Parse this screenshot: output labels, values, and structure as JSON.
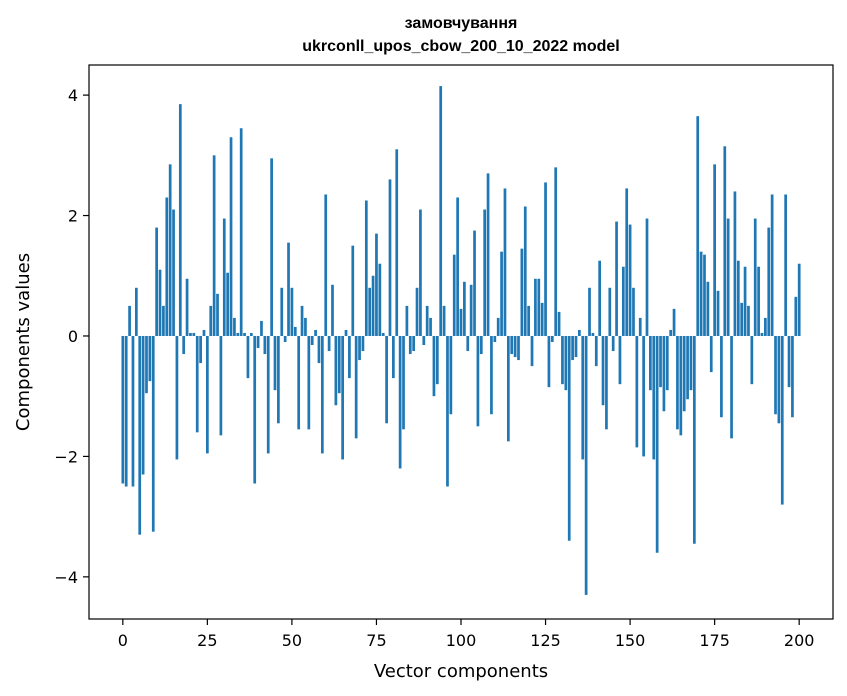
{
  "chart_data": {
    "type": "bar",
    "title_line1": "замовчування",
    "title_line2": "ukrconll_upos_cbow_200_10_2022 model",
    "xlabel": "Vector components",
    "ylabel": "Components values",
    "xlim": [
      -10,
      210
    ],
    "ylim": [
      -4.7,
      4.5
    ],
    "xticks": [
      0,
      25,
      50,
      75,
      100,
      125,
      150,
      175,
      200
    ],
    "yticks": [
      4,
      2,
      0,
      -2,
      -4
    ],
    "ytick_labels": [
      "4",
      "2",
      "0",
      "−2",
      "−4"
    ],
    "bar_color": "#1f77b4",
    "grid": false,
    "values": [
      -2.45,
      -2.5,
      0.5,
      -2.5,
      0.8,
      -3.3,
      -2.3,
      -0.95,
      -0.75,
      -3.25,
      1.8,
      1.1,
      0.5,
      2.3,
      2.85,
      2.1,
      -2.05,
      3.85,
      -0.3,
      0.95,
      0.05,
      0.05,
      -1.6,
      -0.45,
      0.1,
      -1.95,
      0.5,
      3.0,
      0.7,
      -1.65,
      1.95,
      1.05,
      3.3,
      0.3,
      0.05,
      3.45,
      0.05,
      -0.7,
      0.05,
      -2.45,
      -0.2,
      0.25,
      -0.3,
      -1.95,
      2.95,
      -0.9,
      -1.45,
      0.8,
      -0.1,
      1.55,
      0.8,
      0.15,
      -1.55,
      0.5,
      0.3,
      -1.55,
      -0.15,
      0.1,
      -0.45,
      -1.95,
      2.35,
      -0.25,
      0.85,
      -1.15,
      -0.95,
      -2.05,
      0.1,
      -0.7,
      1.5,
      -1.7,
      -0.4,
      -0.25,
      2.25,
      0.8,
      1.0,
      1.7,
      1.2,
      0.05,
      -1.45,
      2.6,
      -0.7,
      3.1,
      -2.2,
      -1.55,
      0.5,
      -0.3,
      -0.25,
      0.8,
      2.1,
      -0.15,
      0.5,
      0.3,
      -1.0,
      -0.8,
      4.15,
      0.5,
      -2.5,
      -1.3,
      1.35,
      2.3,
      0.45,
      0.9,
      -0.25,
      0.85,
      1.75,
      -1.5,
      -0.3,
      2.1,
      2.7,
      -1.3,
      -0.1,
      0.3,
      1.4,
      2.45,
      -1.75,
      -0.3,
      -0.35,
      -0.4,
      1.45,
      2.15,
      0.5,
      -0.5,
      0.95,
      0.95,
      0.55,
      2.55,
      -0.85,
      -0.1,
      2.8,
      0.4,
      -0.8,
      -0.9,
      -3.4,
      -0.4,
      -0.35,
      0.1,
      -2.05,
      -4.3,
      0.8,
      0.05,
      -0.5,
      1.25,
      -1.15,
      -1.55,
      0.8,
      -0.25,
      1.9,
      -0.8,
      1.15,
      2.45,
      1.85,
      0.8,
      -1.85,
      0.3,
      -2.0,
      1.95,
      -0.9,
      -2.05,
      -3.6,
      -0.85,
      -1.25,
      -0.9,
      0.1,
      0.45,
      -1.55,
      -1.65,
      -1.25,
      -1.05,
      -0.9,
      -3.45,
      3.65,
      1.4,
      1.35,
      0.9,
      -0.6,
      2.85,
      0.75,
      -1.35,
      3.15,
      1.95,
      -1.7,
      2.4,
      1.25,
      0.55,
      1.15,
      0.5,
      -0.8,
      1.95,
      1.15,
      0.05,
      0.3,
      1.8,
      2.35,
      -1.3,
      -1.45,
      -2.8,
      2.35,
      -0.85,
      -1.35,
      0.65,
      1.2
    ]
  }
}
